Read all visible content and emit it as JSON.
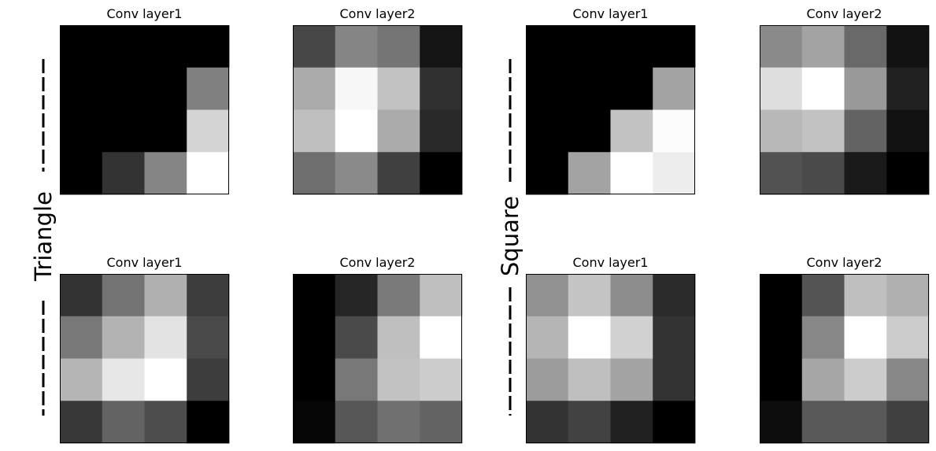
{
  "chart_data": {
    "type": "heatmap",
    "colormap": "gray",
    "value_range": [
      0,
      1
    ],
    "groups": [
      {
        "label": "Triangle"
      },
      {
        "label": "Square"
      }
    ],
    "panels": [
      {
        "group": 0,
        "row": 0,
        "col": 0,
        "title": "Conv layer1",
        "values": [
          [
            0,
            0,
            0,
            0
          ],
          [
            0,
            0,
            0,
            0.5
          ],
          [
            0,
            0,
            0,
            0.83
          ],
          [
            0,
            0.2,
            0.52,
            1
          ]
        ]
      },
      {
        "group": 0,
        "row": 0,
        "col": 1,
        "title": "Conv layer2",
        "values": [
          [
            0.28,
            0.52,
            0.46,
            0.08
          ],
          [
            0.67,
            0.97,
            0.76,
            0.19
          ],
          [
            0.75,
            1,
            0.67,
            0.16
          ],
          [
            0.43,
            0.54,
            0.25,
            0
          ]
        ]
      },
      {
        "group": 0,
        "row": 1,
        "col": 0,
        "title": "Conv layer1",
        "values": [
          [
            0.2,
            0.45,
            0.69,
            0.24
          ],
          [
            0.47,
            0.7,
            0.89,
            0.29
          ],
          [
            0.71,
            0.9,
            1,
            0.24
          ],
          [
            0.22,
            0.39,
            0.3,
            0
          ]
        ]
      },
      {
        "group": 0,
        "row": 1,
        "col": 1,
        "title": "Conv layer2",
        "values": [
          [
            0,
            0.15,
            0.48,
            0.75
          ],
          [
            0,
            0.29,
            0.75,
            1
          ],
          [
            0,
            0.47,
            0.76,
            0.8
          ],
          [
            0.02,
            0.34,
            0.44,
            0.39
          ]
        ]
      },
      {
        "group": 1,
        "row": 0,
        "col": 0,
        "title": "Conv layer1",
        "values": [
          [
            0,
            0,
            0,
            0
          ],
          [
            0,
            0,
            0,
            0.64
          ],
          [
            0,
            0,
            0.76,
            0.99
          ],
          [
            0,
            0.64,
            1,
            0.93
          ]
        ]
      },
      {
        "group": 1,
        "row": 0,
        "col": 1,
        "title": "Conv layer2",
        "values": [
          [
            0.54,
            0.64,
            0.41,
            0.07
          ],
          [
            0.87,
            1,
            0.6,
            0.13
          ],
          [
            0.72,
            0.76,
            0.39,
            0.07
          ],
          [
            0.32,
            0.29,
            0.1,
            0
          ]
        ]
      },
      {
        "group": 1,
        "row": 1,
        "col": 0,
        "title": "Conv layer1",
        "values": [
          [
            0.57,
            0.77,
            0.55,
            0.17
          ],
          [
            0.71,
            1,
            0.82,
            0.2
          ],
          [
            0.61,
            0.75,
            0.64,
            0.2
          ],
          [
            0.2,
            0.26,
            0.13,
            0
          ]
        ]
      },
      {
        "group": 1,
        "row": 1,
        "col": 1,
        "title": "Conv layer2",
        "values": [
          [
            0,
            0.33,
            0.75,
            0.69
          ],
          [
            0,
            0.53,
            1,
            0.8
          ],
          [
            0,
            0.65,
            0.8,
            0.53
          ],
          [
            0.05,
            0.35,
            0.35,
            0.25
          ]
        ]
      }
    ]
  }
}
